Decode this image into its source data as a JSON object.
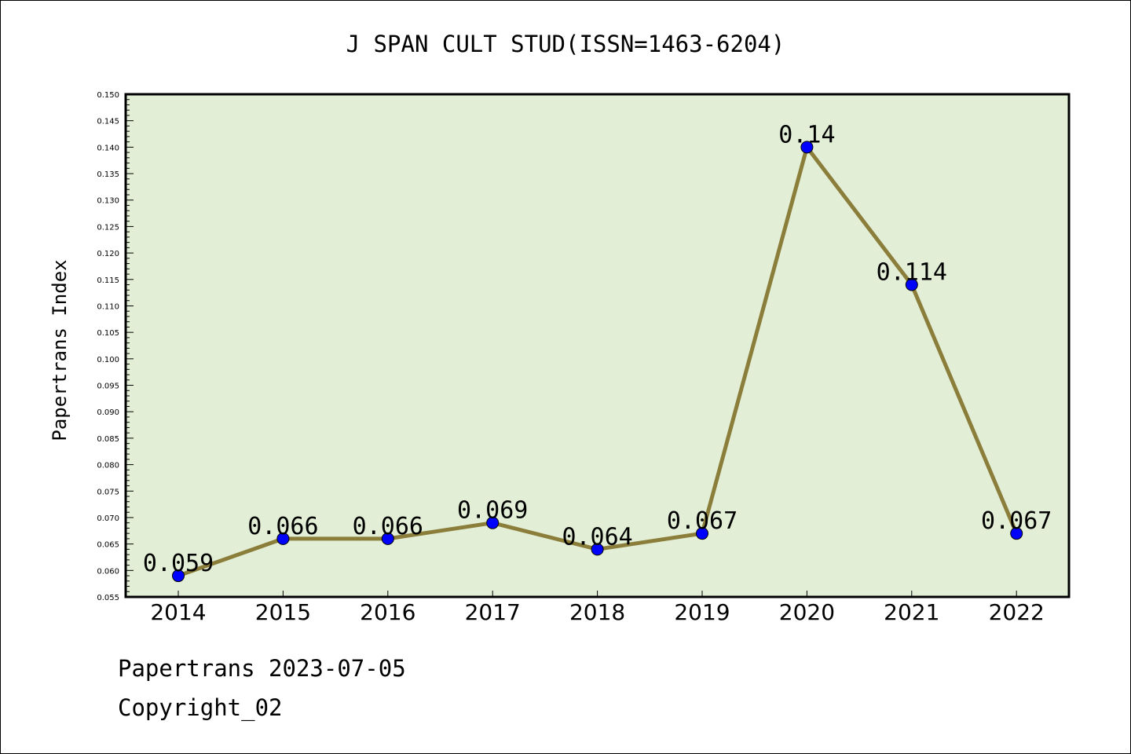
{
  "chart_data": {
    "type": "line",
    "title": "J SPAN CULT STUD(ISSN=1463-6204)",
    "xlabel": "",
    "ylabel": "Papertrans Index",
    "categories": [
      "2014",
      "2015",
      "2016",
      "2017",
      "2018",
      "2019",
      "2020",
      "2021",
      "2022"
    ],
    "values": [
      0.059,
      0.066,
      0.066,
      0.069,
      0.064,
      0.067,
      0.14,
      0.114,
      0.067
    ],
    "data_labels": [
      "0.059",
      "0.066",
      "0.066",
      "0.069",
      "0.064",
      "0.067",
      "0.14",
      "0.114",
      "0.067"
    ],
    "ylim": [
      0.055,
      0.15
    ],
    "yticks": [
      "0.055",
      "0.060",
      "0.065",
      "0.070",
      "0.075",
      "0.080",
      "0.085",
      "0.090",
      "0.095",
      "0.100",
      "0.105",
      "0.110",
      "0.115",
      "0.120",
      "0.125",
      "0.130",
      "0.135",
      "0.140",
      "0.145",
      "0.150"
    ],
    "grid": false,
    "legend": "none",
    "colors": {
      "plot_background": "#e2efd6",
      "line": "#8b7d3a",
      "marker": "#0000ff"
    }
  },
  "footer": {
    "line1": "Papertrans 2023-07-05",
    "line2": "Copyright_02"
  }
}
